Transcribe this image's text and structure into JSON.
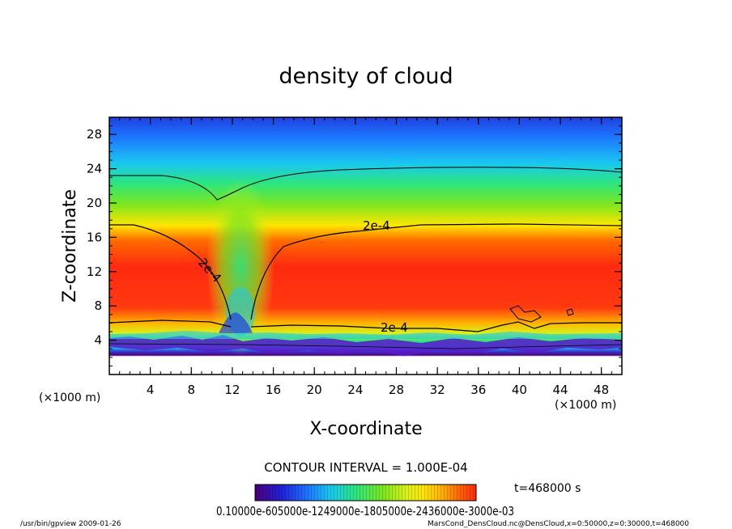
{
  "chart_data": {
    "type": "heatmap",
    "title": "density of cloud",
    "xlabel": "X-coordinate",
    "ylabel": "Z-coordinate",
    "x_unit": "(×1000 m)",
    "y_unit": "(×1000 m)",
    "xlim": [
      0,
      50
    ],
    "ylim": [
      0,
      30
    ],
    "x_ticks": [
      4,
      8,
      12,
      16,
      20,
      24,
      28,
      32,
      36,
      40,
      44,
      48
    ],
    "y_ticks": [
      4,
      8,
      12,
      16,
      20,
      24,
      28
    ],
    "contour_interval_text": "CONTOUR INTERVAL = 1.000E-04",
    "time_text": "t=468000 s",
    "contour_labels": [
      "2e-4",
      "2e-4",
      "2e-4"
    ],
    "colorbar_label_text": "0.10000e-605000e-1249000e-1805000e-2436000e-3000e-03",
    "footer_left": "/usr/bin/gpview  2009-01-26",
    "footer_right": "MarsCond_DensCloud.nc@DensCloud,x=0:50000,z=0:30000,t=468000",
    "colors": [
      "#4a0078",
      "#2020d8",
      "#1e78ff",
      "#19c8f0",
      "#2ee67a",
      "#7ee61e",
      "#d8f01a",
      "#ffe600",
      "#ffb400",
      "#ff6a00",
      "#ff2a10"
    ]
  }
}
